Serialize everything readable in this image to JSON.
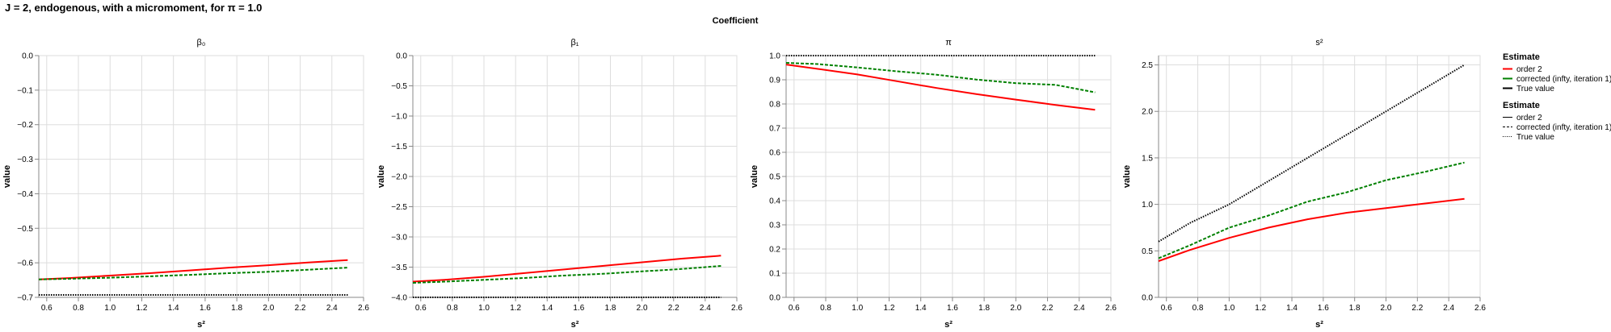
{
  "page_title": "J = 2, endogenous, with a micromoment,  for π = 1.0",
  "facet_title": "Coefficient",
  "colors": {
    "order2": "#ff0000",
    "corrected": "#008000",
    "true": "#000000",
    "grid": "#dddddd",
    "axis": "#888888"
  },
  "legends": [
    {
      "title": "Estimate",
      "kind": "color",
      "items": [
        "order 2",
        "corrected (infty, iteration 1)",
        "True value"
      ]
    },
    {
      "title": "Estimate",
      "kind": "dash",
      "items": [
        "order 2",
        "corrected (infty, iteration 1)",
        "True value"
      ]
    }
  ],
  "chart_data": [
    {
      "type": "line",
      "title": "β₀",
      "xlabel": "s²",
      "ylabel": "value",
      "xlim": [
        0.55,
        2.6
      ],
      "ylim": [
        -0.7,
        0.0
      ],
      "xticks": [
        "0.6",
        "0.8",
        "1.0",
        "1.2",
        "1.4",
        "1.6",
        "1.8",
        "2.0",
        "2.2",
        "2.4",
        "2.6"
      ],
      "yticks": [
        "0.0",
        "−0.1",
        "−0.2",
        "−0.3",
        "−0.4",
        "−0.5",
        "−0.6",
        "−0.7"
      ],
      "x": [
        0.55,
        0.75,
        1.0,
        1.25,
        1.5,
        1.75,
        2.0,
        2.25,
        2.5
      ],
      "series": [
        {
          "name": "order 2",
          "values": [
            -0.648,
            -0.644,
            -0.637,
            -0.63,
            -0.622,
            -0.614,
            -0.607,
            -0.599,
            -0.592
          ]
        },
        {
          "name": "corrected (infty, iteration 1)",
          "values": [
            -0.648,
            -0.646,
            -0.643,
            -0.639,
            -0.635,
            -0.63,
            -0.626,
            -0.62,
            -0.614
          ]
        },
        {
          "name": "True value",
          "values": [
            -0.693,
            -0.693,
            -0.693,
            -0.693,
            -0.693,
            -0.693,
            -0.693,
            -0.693,
            -0.693
          ]
        }
      ]
    },
    {
      "type": "line",
      "title": "β₁",
      "xlabel": "s²",
      "ylabel": "value",
      "xlim": [
        0.55,
        2.6
      ],
      "ylim": [
        -4.0,
        0.0
      ],
      "xticks": [
        "0.6",
        "0.8",
        "1.0",
        "1.2",
        "1.4",
        "1.6",
        "1.8",
        "2.0",
        "2.2",
        "2.4",
        "2.6"
      ],
      "yticks": [
        "0.0",
        "−0.5",
        "−1.0",
        "−1.5",
        "−2.0",
        "−2.5",
        "−3.0",
        "−3.5",
        "−4.0"
      ],
      "x": [
        0.55,
        0.75,
        1.0,
        1.25,
        1.5,
        1.75,
        2.0,
        2.25,
        2.5
      ],
      "series": [
        {
          "name": "order 2",
          "values": [
            -3.74,
            -3.71,
            -3.66,
            -3.6,
            -3.54,
            -3.48,
            -3.42,
            -3.36,
            -3.31
          ]
        },
        {
          "name": "corrected (infty, iteration 1)",
          "values": [
            -3.76,
            -3.74,
            -3.71,
            -3.68,
            -3.64,
            -3.61,
            -3.57,
            -3.53,
            -3.48
          ]
        },
        {
          "name": "True value",
          "values": [
            -4.0,
            -4.0,
            -4.0,
            -4.0,
            -4.0,
            -4.0,
            -4.0,
            -4.0,
            -4.0
          ]
        }
      ]
    },
    {
      "type": "line",
      "title": "π",
      "xlabel": "s²",
      "ylabel": "value",
      "xlim": [
        0.55,
        2.6
      ],
      "ylim": [
        0.0,
        1.0
      ],
      "xticks": [
        "0.6",
        "0.8",
        "1.0",
        "1.2",
        "1.4",
        "1.6",
        "1.8",
        "2.0",
        "2.2",
        "2.4",
        "2.6"
      ],
      "yticks": [
        "1.0",
        "0.9",
        "0.8",
        "0.7",
        "0.6",
        "0.5",
        "0.4",
        "0.3",
        "0.2",
        "0.1",
        "0.0"
      ],
      "x": [
        0.55,
        0.75,
        1.0,
        1.25,
        1.5,
        1.75,
        2.0,
        2.25,
        2.5
      ],
      "series": [
        {
          "name": "order 2",
          "values": [
            0.963,
            0.945,
            0.922,
            0.894,
            0.866,
            0.841,
            0.818,
            0.796,
            0.776
          ]
        },
        {
          "name": "corrected (infty, iteration 1)",
          "values": [
            0.97,
            0.965,
            0.951,
            0.935,
            0.921,
            0.901,
            0.886,
            0.879,
            0.848
          ]
        },
        {
          "name": "True value",
          "values": [
            1.0,
            1.0,
            1.0,
            1.0,
            1.0,
            1.0,
            1.0,
            1.0,
            1.0
          ]
        }
      ]
    },
    {
      "type": "line",
      "title": "s²",
      "xlabel": "s²",
      "ylabel": "value",
      "xlim": [
        0.55,
        2.6
      ],
      "ylim": [
        0.0,
        2.6
      ],
      "xticks": [
        "0.6",
        "0.8",
        "1.0",
        "1.2",
        "1.4",
        "1.6",
        "1.8",
        "2.0",
        "2.2",
        "2.4",
        "2.6"
      ],
      "yticks": [
        "2.5",
        "2.0",
        "1.5",
        "1.0",
        "0.5",
        "0.0"
      ],
      "x": [
        0.55,
        0.75,
        1.0,
        1.25,
        1.5,
        1.75,
        2.0,
        2.25,
        2.5
      ],
      "series": [
        {
          "name": "order 2",
          "values": [
            0.39,
            0.51,
            0.64,
            0.75,
            0.84,
            0.91,
            0.96,
            1.01,
            1.06
          ]
        },
        {
          "name": "corrected (infty, iteration 1)",
          "values": [
            0.42,
            0.56,
            0.75,
            0.88,
            1.03,
            1.13,
            1.26,
            1.35,
            1.45
          ]
        },
        {
          "name": "True value",
          "values": [
            0.6,
            0.8,
            1.0,
            1.25,
            1.5,
            1.75,
            2.0,
            2.25,
            2.5
          ]
        }
      ]
    }
  ]
}
